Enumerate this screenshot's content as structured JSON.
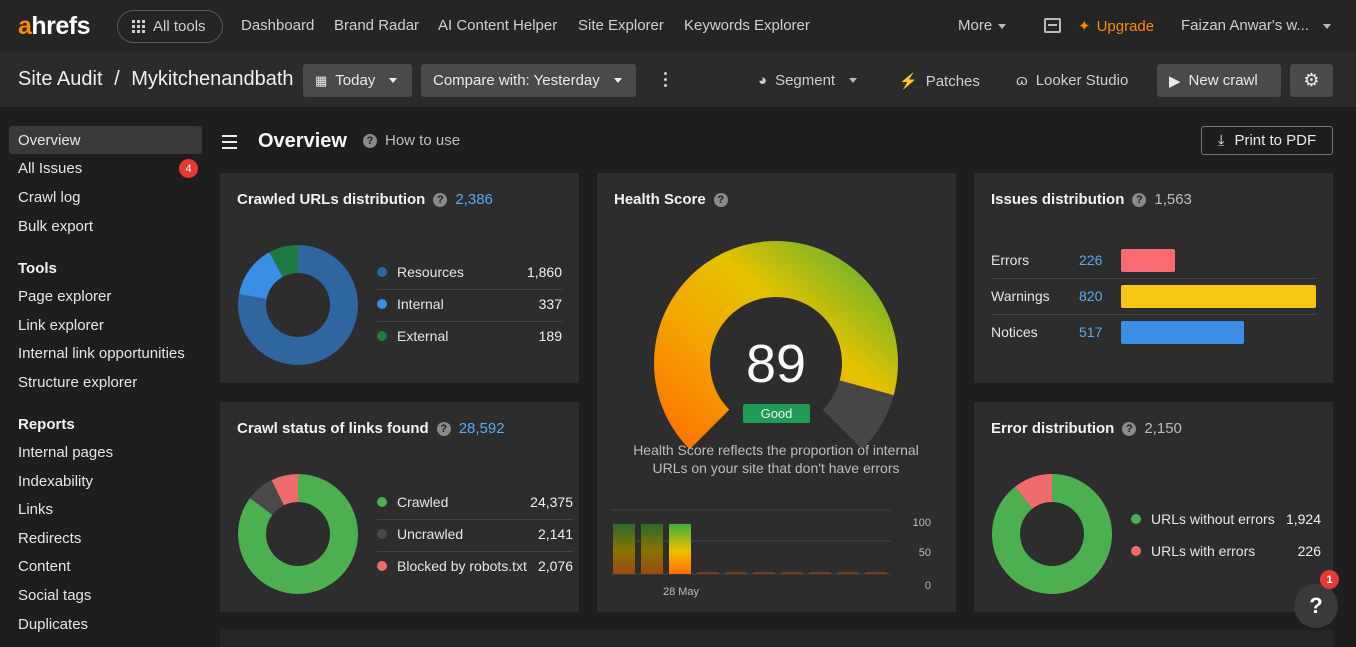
{
  "topnav": {
    "logo_a": "a",
    "logo_rest": "hrefs",
    "all_tools": "All tools",
    "links": [
      "Dashboard",
      "Brand Radar",
      "AI Content Helper",
      "Site Explorer",
      "Keywords Explorer"
    ],
    "more": "More",
    "upgrade": "Upgrade",
    "user": "Faizan Anwar's w..."
  },
  "subbar": {
    "breadcrumb_root": "Site Audit",
    "breadcrumb_sep": "/",
    "project": "Mykitchenandbath",
    "date_button": "Today",
    "compare_button": "Compare with: Yesterday",
    "segment": "Segment",
    "patches": "Patches",
    "looker": "Looker Studio",
    "new_crawl": "New crawl"
  },
  "sidebar": {
    "items_top": [
      {
        "label": "Overview",
        "active": true
      },
      {
        "label": "All Issues",
        "badge": "4"
      },
      {
        "label": "Crawl log"
      },
      {
        "label": "Bulk export"
      }
    ],
    "tools_heading": "Tools",
    "tools": [
      "Page explorer",
      "Link explorer",
      "Internal link opportunities",
      "Structure explorer"
    ],
    "reports_heading": "Reports",
    "reports": [
      "Internal pages",
      "Indexability",
      "Links",
      "Redirects",
      "Content",
      "Social tags",
      "Duplicates"
    ]
  },
  "main": {
    "title": "Overview",
    "how_to_use": "How to use",
    "print": "Print to PDF"
  },
  "crawled_urls": {
    "title": "Crawled URLs distribution",
    "total": "2,386",
    "items": [
      {
        "label": "Resources",
        "value": "1,860",
        "num": 1860,
        "color": "#2f66a0"
      },
      {
        "label": "Internal",
        "value": "337",
        "num": 337,
        "color": "#3a8ee6"
      },
      {
        "label": "External",
        "value": "189",
        "num": 189,
        "color": "#1d7a43"
      }
    ]
  },
  "crawl_status": {
    "title": "Crawl status of links found",
    "total": "28,592",
    "items": [
      {
        "label": "Crawled",
        "value": "24,375",
        "num": 24375,
        "color": "#4caf50"
      },
      {
        "label": "Uncrawled",
        "value": "2,141",
        "num": 2141,
        "color": "#4a4a4a"
      },
      {
        "label": "Blocked by robots.txt",
        "value": "2,076",
        "num": 2076,
        "color": "#f06b6b"
      }
    ]
  },
  "health": {
    "title": "Health Score",
    "score": "89",
    "score_num": 89,
    "status": "Good",
    "description": "Health Score reflects the proportion of internal URLs on your site that don't have errors",
    "history_label": "28 May",
    "axis": [
      "100",
      "50",
      "0"
    ],
    "history": [
      89,
      89,
      89,
      0,
      0,
      0,
      0,
      0,
      0,
      0
    ]
  },
  "issues": {
    "title": "Issues distribution",
    "total": "1,563",
    "rows": [
      {
        "label": "Errors",
        "value": "226",
        "num": 226,
        "color": "#f86b70"
      },
      {
        "label": "Warnings",
        "value": "820",
        "num": 820,
        "color": "#f6c712"
      },
      {
        "label": "Notices",
        "value": "517",
        "num": 517,
        "color": "#3a8ee6"
      }
    ]
  },
  "error_dist": {
    "title": "Error distribution",
    "total": "2,150",
    "items": [
      {
        "label": "URLs without errors",
        "value": "1,924",
        "num": 1924,
        "color": "#4caf50"
      },
      {
        "label": "URLs with errors",
        "value": "226",
        "num": 226,
        "color": "#f06b6b"
      }
    ]
  },
  "help": {
    "label": "?",
    "badge": "1"
  }
}
